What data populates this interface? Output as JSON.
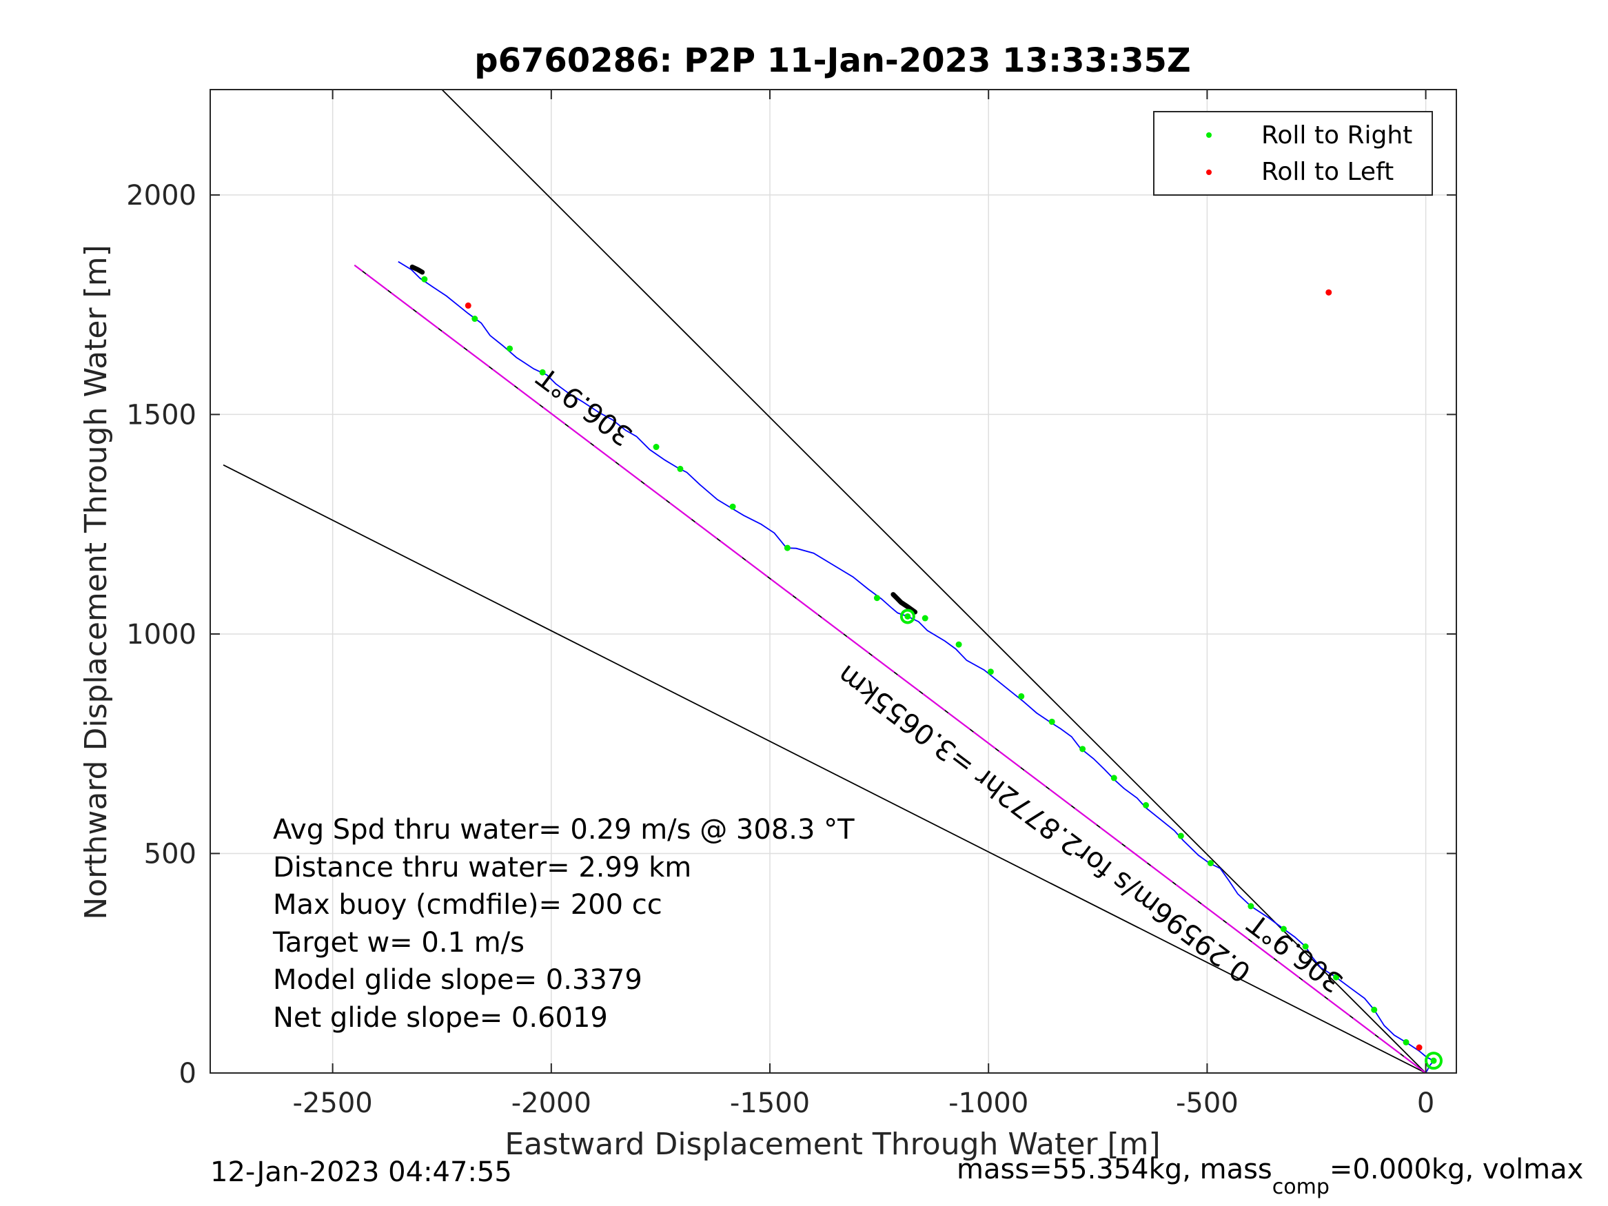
{
  "chart_data": {
    "type": "line",
    "title": "p6760286: P2P 11-Jan-2023 13:33:35Z",
    "xlabel": "Eastward Displacement Through Water [m]",
    "ylabel": "Northward Displacement Through Water [m]",
    "xlim": [
      -2780,
      70
    ],
    "ylim": [
      0,
      2240
    ],
    "xticks": [
      -2500,
      -2000,
      -1500,
      -1000,
      -500,
      0
    ],
    "yticks": [
      0,
      500,
      1000,
      1500,
      2000
    ],
    "grid": true,
    "legend_position": "top-right",
    "legend": [
      {
        "label": "Roll to Right",
        "color": "#00ee00"
      },
      {
        "label": "Roll to Left",
        "color": "#ff0000"
      }
    ],
    "track": {
      "color": "#0000ff",
      "points": [
        [
          0,
          0
        ],
        [
          10,
          18
        ],
        [
          18,
          28
        ],
        [
          2,
          36
        ],
        [
          -15,
          50
        ],
        [
          -45,
          70
        ],
        [
          -72,
          86
        ],
        [
          -95,
          108
        ],
        [
          -118,
          144
        ],
        [
          -140,
          170
        ],
        [
          -170,
          192
        ],
        [
          -205,
          218
        ],
        [
          -240,
          240
        ],
        [
          -258,
          262
        ],
        [
          -275,
          288
        ],
        [
          -300,
          310
        ],
        [
          -325,
          328
        ],
        [
          -360,
          354
        ],
        [
          -400,
          380
        ],
        [
          -430,
          408
        ],
        [
          -450,
          438
        ],
        [
          -470,
          466
        ],
        [
          -495,
          478
        ],
        [
          -520,
          496
        ],
        [
          -555,
          530
        ],
        [
          -575,
          552
        ],
        [
          -600,
          572
        ],
        [
          -640,
          604
        ],
        [
          -660,
          626
        ],
        [
          -690,
          648
        ],
        [
          -710,
          666
        ],
        [
          -735,
          692
        ],
        [
          -760,
          716
        ],
        [
          -790,
          740
        ],
        [
          -810,
          766
        ],
        [
          -835,
          784
        ],
        [
          -860,
          800
        ],
        [
          -890,
          820
        ],
        [
          -920,
          846
        ],
        [
          -950,
          870
        ],
        [
          -985,
          898
        ],
        [
          -1010,
          918
        ],
        [
          -1050,
          940
        ],
        [
          -1075,
          966
        ],
        [
          -1100,
          984
        ],
        [
          -1140,
          1008
        ],
        [
          -1160,
          1028
        ],
        [
          -1185,
          1040
        ],
        [
          -1208,
          1048
        ],
        [
          -1220,
          1058
        ],
        [
          -1245,
          1080
        ],
        [
          -1275,
          1102
        ],
        [
          -1310,
          1130
        ],
        [
          -1360,
          1160
        ],
        [
          -1400,
          1184
        ],
        [
          -1440,
          1195
        ],
        [
          -1462,
          1196
        ],
        [
          -1490,
          1230
        ],
        [
          -1520,
          1250
        ],
        [
          -1560,
          1270
        ],
        [
          -1590,
          1288
        ],
        [
          -1620,
          1306
        ],
        [
          -1660,
          1340
        ],
        [
          -1690,
          1368
        ],
        [
          -1710,
          1378
        ],
        [
          -1740,
          1396
        ],
        [
          -1775,
          1420
        ],
        [
          -1805,
          1450
        ],
        [
          -1830,
          1464
        ],
        [
          -1860,
          1488
        ],
        [
          -1890,
          1504
        ],
        [
          -1930,
          1530
        ],
        [
          -1960,
          1548
        ],
        [
          -1990,
          1570
        ],
        [
          -2010,
          1590
        ],
        [
          -2040,
          1604
        ],
        [
          -2080,
          1630
        ],
        [
          -2110,
          1656
        ],
        [
          -2140,
          1680
        ],
        [
          -2160,
          1708
        ],
        [
          -2190,
          1730
        ],
        [
          -2210,
          1746
        ],
        [
          -2240,
          1770
        ],
        [
          -2270,
          1790
        ],
        [
          -2300,
          1810
        ],
        [
          -2320,
          1830
        ],
        [
          -2350,
          1848
        ]
      ]
    },
    "roll_right_points": [
      [
        18,
        28
      ],
      [
        -45,
        70
      ],
      [
        -118,
        144
      ],
      [
        -205,
        218
      ],
      [
        -275,
        288
      ],
      [
        -325,
        328
      ],
      [
        -400,
        380
      ],
      [
        -492,
        478
      ],
      [
        -560,
        540
      ],
      [
        -640,
        610
      ],
      [
        -713,
        672
      ],
      [
        -785,
        738
      ],
      [
        -855,
        800
      ],
      [
        -925,
        858
      ],
      [
        -995,
        914
      ],
      [
        -1068,
        976
      ],
      [
        -1145,
        1036
      ],
      [
        -1185,
        1040
      ],
      [
        -1255,
        1082
      ],
      [
        -1460,
        1196
      ],
      [
        -1585,
        1290
      ],
      [
        -1705,
        1376
      ],
      [
        -1760,
        1426
      ],
      [
        -2020,
        1596
      ],
      [
        -2095,
        1650
      ],
      [
        -2175,
        1718
      ],
      [
        -2290,
        1808
      ]
    ],
    "roll_left_points": [
      [
        -15,
        58
      ],
      [
        -222,
        1778
      ],
      [
        -2190,
        1748
      ]
    ],
    "black_segments": [
      {
        "points": [
          [
            -1168,
            1050
          ],
          [
            -1185,
            1062
          ],
          [
            -1200,
            1072
          ],
          [
            -1210,
            1082
          ],
          [
            -1218,
            1090
          ]
        ]
      },
      {
        "points": [
          [
            -2295,
            1824
          ],
          [
            -2305,
            1830
          ],
          [
            -2318,
            1836
          ]
        ]
      }
    ],
    "reference_lines": [
      {
        "name": "heading 306.9°T",
        "color": "#000000",
        "from": [
          0,
          0
        ],
        "to": [
          -2250,
          2240
        ]
      },
      {
        "name": "current direction",
        "color": "#000000",
        "from": [
          0,
          0
        ],
        "to": [
          -2750,
          1385
        ]
      },
      {
        "name": "overlay-black",
        "color": "#000000",
        "from": [
          0,
          0
        ],
        "to": [
          -2450,
          1840
        ]
      },
      {
        "name": "overlay-magenta",
        "color": "#e000e0",
        "from": [
          0,
          0
        ],
        "to": [
          -2450,
          1840
        ]
      }
    ],
    "start_marker": {
      "color": "#00ee00",
      "at": [
        18,
        28
      ]
    },
    "annotations": [
      {
        "text": "306.9°T",
        "at": [
          -1910,
          1535
        ],
        "angle": 36.9
      },
      {
        "text": "306.9°T",
        "at": [
          -285,
          290
        ],
        "angle": 36.9
      },
      {
        "text": "0.29596m/s for2.8772hr =3.0655km",
        "at": [
          -860,
          585
        ],
        "angle": 36.9
      }
    ],
    "stats": [
      "Avg Spd thru water=  0.29 m/s @ 308.3 °T",
      "Distance thru water=  2.99 km",
      "Max buoy (cmdfile)= 200 cc",
      "Target w= 0.1 m/s",
      "Model glide slope= 0.3379",
      "Net glide slope= 0.6019"
    ]
  },
  "footer": {
    "timestamp": "12-Jan-2023 04:47:55",
    "mass_text": "mass=55.354kg, mass",
    "mass_sub": "comp",
    "mass_rest": "=0.000kg, volmax"
  }
}
